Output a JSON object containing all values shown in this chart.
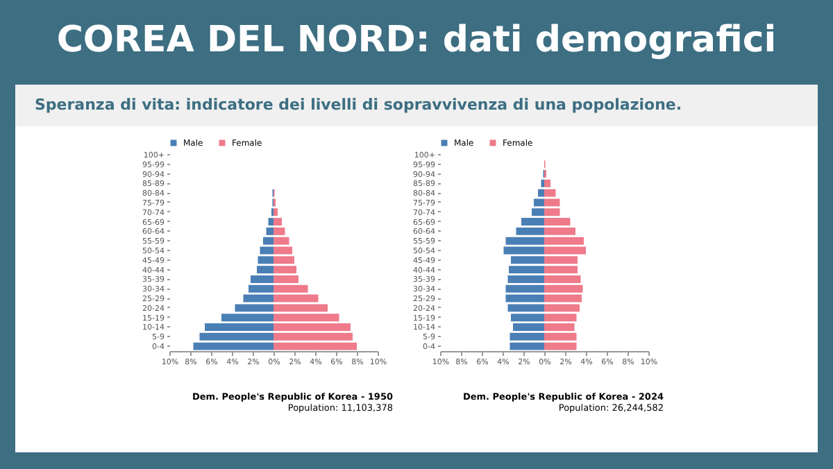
{
  "chart_data": [
    {
      "type": "bar",
      "orientation": "horizontal",
      "title": "COREA DEL NORD: dati demografici",
      "subtitle": "Speranza di vita: indicatore dei livelli di sopravvivenza di una popolazione.",
      "annotations": [
        "Dem. People's Republic of Korea - 1950",
        "Population: 11,103,378"
      ],
      "categories": [
        "100+",
        "95-99",
        "90-94",
        "85-89",
        "80-84",
        "75-79",
        "70-74",
        "65-69",
        "60-64",
        "55-59",
        "50-54",
        "45-49",
        "40-44",
        "35-39",
        "30-34",
        "25-29",
        "20-24",
        "15-19",
        "10-14",
        "5-9",
        "0-4"
      ],
      "series": [
        {
          "name": "Male",
          "color": "#4a7fb5",
          "values": [
            0,
            0,
            0,
            0,
            -0.1,
            -0.1,
            -0.2,
            -0.5,
            -0.7,
            -1.0,
            -1.3,
            -1.5,
            -1.6,
            -2.2,
            -2.4,
            -2.9,
            -3.7,
            -5.0,
            -6.6,
            -7.1,
            -7.7
          ]
        },
        {
          "name": "Female",
          "color": "#ee7a8a",
          "values": [
            0,
            0,
            0,
            0,
            0.1,
            0.2,
            0.4,
            0.8,
            1.1,
            1.5,
            1.8,
            2.0,
            2.2,
            2.4,
            3.3,
            4.3,
            5.2,
            6.3,
            7.4,
            7.6,
            8.0
          ]
        }
      ],
      "xlim": [
        -10,
        10
      ],
      "xticks": [
        {
          "value": -10,
          "label": "10%"
        },
        {
          "value": -8,
          "label": "8%"
        },
        {
          "value": -6,
          "label": "6%"
        },
        {
          "value": -4,
          "label": "4%"
        },
        {
          "value": -2,
          "label": "2%"
        },
        {
          "value": 0,
          "label": "0%"
        },
        {
          "value": 2,
          "label": "2%"
        },
        {
          "value": 4,
          "label": "4%"
        },
        {
          "value": 6,
          "label": "6%"
        },
        {
          "value": 8,
          "label": "8%"
        },
        {
          "value": 10,
          "label": "10%"
        }
      ],
      "legend": "top",
      "grid": false,
      "stacked": true
    },
    {
      "type": "bar",
      "orientation": "horizontal",
      "title": "Dem. People's Republic of Korea - 2024",
      "annotations": [
        "Population: 26,244,582"
      ],
      "categories": [
        "100+",
        "95-99",
        "90-94",
        "85-89",
        "80-84",
        "75-79",
        "70-74",
        "65-69",
        "60-64",
        "55-59",
        "50-54",
        "45-49",
        "40-44",
        "35-39",
        "30-34",
        "25-29",
        "20-24",
        "15-19",
        "10-14",
        "5-9",
        "0-4"
      ],
      "series": [
        {
          "name": "Male",
          "color": "#4a7fb5",
          "values": [
            0,
            0,
            -0.1,
            -0.3,
            -0.6,
            -1.0,
            -1.2,
            -2.2,
            -2.7,
            -3.7,
            -3.9,
            -3.2,
            -3.4,
            -3.5,
            -3.7,
            -3.7,
            -3.5,
            -3.2,
            -3.0,
            -3.3,
            -3.3
          ]
        },
        {
          "name": "Female",
          "color": "#ee7a8a",
          "values": [
            0,
            0.1,
            0.2,
            0.6,
            1.1,
            1.5,
            1.5,
            2.5,
            3.0,
            3.8,
            4.0,
            3.2,
            3.2,
            3.5,
            3.7,
            3.6,
            3.4,
            3.1,
            2.9,
            3.1,
            3.1
          ]
        }
      ],
      "xlim": [
        -10,
        10
      ],
      "xticks": [
        {
          "value": -10,
          "label": "10%"
        },
        {
          "value": -8,
          "label": "8%"
        },
        {
          "value": -6,
          "label": "6%"
        },
        {
          "value": -4,
          "label": "4%"
        },
        {
          "value": -2,
          "label": "2%"
        },
        {
          "value": 0,
          "label": "0%"
        },
        {
          "value": 2,
          "label": "2%"
        },
        {
          "value": 4,
          "label": "4%"
        },
        {
          "value": 6,
          "label": "6%"
        },
        {
          "value": 8,
          "label": "8%"
        },
        {
          "value": 10,
          "label": "10%"
        }
      ],
      "legend": "top",
      "grid": false,
      "stacked": true
    }
  ]
}
